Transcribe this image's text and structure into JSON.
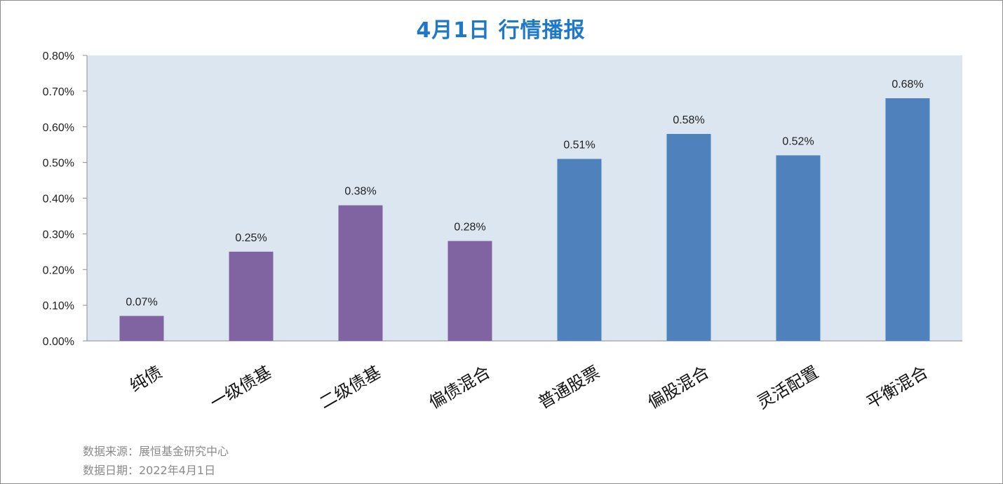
{
  "chart_data": {
    "type": "bar",
    "title": "4月1日  行情播报",
    "categories": [
      "纯债",
      "一级债基",
      "二级债基",
      "偏债混合",
      "普通股票",
      "偏股混合",
      "灵活配置",
      "平衡混合"
    ],
    "values": [
      0.07,
      0.25,
      0.38,
      0.28,
      0.51,
      0.58,
      0.52,
      0.68
    ],
    "value_labels": [
      "0.07%",
      "0.25%",
      "0.38%",
      "0.28%",
      "0.51%",
      "0.58%",
      "0.52%",
      "0.68%"
    ],
    "bar_colors": [
      "#8064a2",
      "#8064a2",
      "#8064a2",
      "#8064a2",
      "#4f81bd",
      "#4f81bd",
      "#4f81bd",
      "#4f81bd"
    ],
    "ylim": [
      0,
      0.8
    ],
    "yticks": [
      "0.00%",
      "0.10%",
      "0.20%",
      "0.30%",
      "0.40%",
      "0.50%",
      "0.60%",
      "0.70%",
      "0.80%"
    ],
    "plot_background": "#dce6f1",
    "grid": false
  },
  "footer": {
    "source": "数据来源：展恒基金研究中心",
    "date": "数据日期：2022年4月1日"
  },
  "colors": {
    "title": "#1f78c8"
  }
}
